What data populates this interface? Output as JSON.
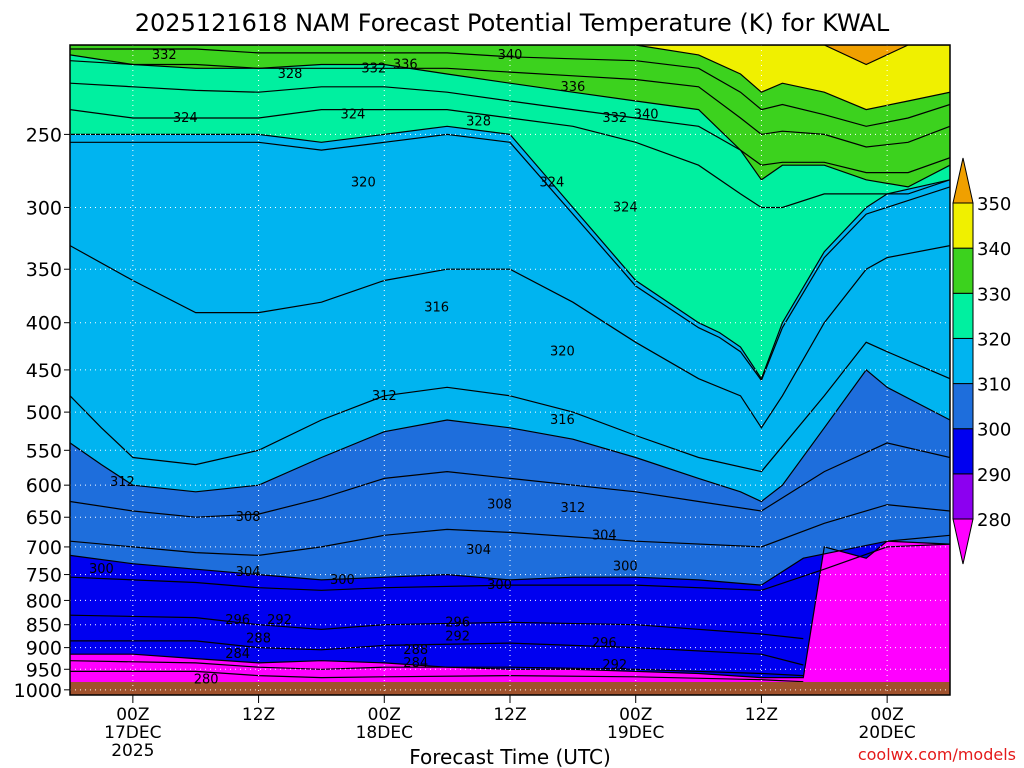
{
  "chart_data": {
    "type": "area",
    "title": "2025121618 NAM Forecast Potential Temperature (K) for KWAL",
    "xlabel": "Forecast Time (UTC)",
    "ylabel": "",
    "watermark": "coolwx.com/models",
    "x_ticks": [
      {
        "hour": 6,
        "label": "00Z",
        "date": "17DEC",
        "year": "2025"
      },
      {
        "hour": 18,
        "label": "12Z",
        "date": "",
        "year": ""
      },
      {
        "hour": 30,
        "label": "00Z",
        "date": "18DEC",
        "year": ""
      },
      {
        "hour": 42,
        "label": "12Z",
        "date": "",
        "year": ""
      },
      {
        "hour": 54,
        "label": "00Z",
        "date": "19DEC",
        "year": ""
      },
      {
        "hour": 66,
        "label": "12Z",
        "date": "",
        "year": ""
      },
      {
        "hour": 78,
        "label": "00Z",
        "date": "20DEC",
        "year": ""
      }
    ],
    "xlim_hours": [
      0,
      84
    ],
    "y_ticks": [
      250,
      300,
      350,
      400,
      450,
      500,
      550,
      600,
      650,
      700,
      750,
      800,
      850,
      900,
      950,
      1000
    ],
    "ylim": [
      1000,
      200
    ],
    "colorbar": {
      "levels": [
        280,
        290,
        300,
        310,
        320,
        330,
        340,
        350
      ],
      "colors": [
        "#ff00ff",
        "#8c00f0",
        "#0000f0",
        "#1e6edc",
        "#00b4f0",
        "#00f0a0",
        "#3cd21e",
        "#f0f000",
        "#f0a000"
      ]
    },
    "series": [
      {
        "level": 290,
        "color": "#8c00f0",
        "x": [
          0,
          6,
          12,
          18,
          24,
          30,
          36,
          42,
          48,
          54,
          60,
          66,
          70,
          72,
          76,
          78,
          84
        ],
        "y": [
          915,
          915,
          925,
          935,
          930,
          935,
          945,
          950,
          950,
          955,
          960,
          970,
          970,
          700,
          720,
          690,
          680
        ]
      },
      {
        "level": 300,
        "color": "#0000f0",
        "x": [
          0,
          6,
          12,
          18,
          24,
          30,
          36,
          42,
          48,
          54,
          60,
          66,
          70,
          78,
          84
        ],
        "y": [
          715,
          730,
          740,
          750,
          760,
          755,
          750,
          760,
          755,
          755,
          760,
          770,
          720,
          690,
          695
        ]
      },
      {
        "level": 310,
        "color": "#1e6edc",
        "x": [
          0,
          3,
          6,
          12,
          18,
          24,
          30,
          36,
          42,
          48,
          54,
          60,
          64,
          66,
          68,
          72,
          76,
          78,
          84
        ],
        "y": [
          540,
          570,
          600,
          610,
          600,
          560,
          525,
          510,
          520,
          535,
          560,
          590,
          610,
          625,
          600,
          520,
          450,
          470,
          510
        ]
      },
      {
        "level": 320,
        "color": "#00b4f0",
        "x": [
          0,
          6,
          12,
          18,
          24,
          30,
          36,
          42,
          48,
          54,
          60,
          62,
          64,
          66,
          68,
          72,
          76,
          78,
          84
        ],
        "y": [
          250,
          250,
          250,
          250,
          255,
          250,
          245,
          250,
          300,
          360,
          400,
          410,
          425,
          460,
          400,
          335,
          300,
          290,
          280
        ]
      },
      {
        "level": 330,
        "color": "#00f0a0",
        "x": [
          0,
          6,
          12,
          18,
          24,
          30,
          36,
          42,
          48,
          54,
          60,
          64,
          66,
          68,
          72,
          76,
          80,
          84
        ],
        "y": [
          205,
          210,
          212,
          212,
          210,
          210,
          215,
          220,
          225,
          230,
          235,
          260,
          280,
          270,
          270,
          280,
          285,
          270
        ]
      },
      {
        "level": 340,
        "color": "#3cd21e",
        "x": [
          0,
          6,
          12,
          18,
          24,
          30,
          36,
          42,
          48,
          54,
          60,
          64,
          66,
          68,
          72,
          76,
          80,
          84
        ],
        "y": [
          200,
          200,
          200,
          200,
          200,
          200,
          200,
          200,
          200,
          200,
          205,
          215,
          225,
          220,
          225,
          235,
          230,
          225
        ]
      },
      {
        "level": 350,
        "color": "#f0f000",
        "x": [
          66,
          72,
          76,
          80,
          84
        ],
        "y": [
          200,
          200,
          210,
          200,
          200
        ]
      }
    ],
    "contour_lines": [
      {
        "level": 280,
        "x": [
          0,
          12,
          18,
          24,
          30,
          42,
          54,
          66,
          70
        ],
        "y": [
          985,
          985,
          990,
          990,
          988,
          985,
          985,
          990,
          990
        ]
      },
      {
        "level": 284,
        "x": [
          0,
          12,
          18,
          24,
          30,
          42,
          54,
          66,
          70
        ],
        "y": [
          955,
          955,
          965,
          970,
          968,
          965,
          968,
          975,
          980
        ]
      },
      {
        "level": 288,
        "x": [
          0,
          12,
          18,
          24,
          30,
          42,
          54,
          66,
          70
        ],
        "y": [
          930,
          935,
          945,
          950,
          945,
          945,
          950,
          960,
          965
        ]
      },
      {
        "level": 292,
        "x": [
          0,
          12,
          18,
          24,
          30,
          42,
          54,
          66,
          70
        ],
        "y": [
          885,
          885,
          900,
          905,
          895,
          890,
          900,
          915,
          940
        ]
      },
      {
        "level": 296,
        "x": [
          0,
          12,
          18,
          24,
          30,
          42,
          54,
          66,
          70
        ],
        "y": [
          830,
          835,
          850,
          860,
          850,
          845,
          850,
          870,
          880
        ]
      },
      {
        "level": 300,
        "x": [
          0,
          12,
          18,
          24,
          30,
          42,
          54,
          66,
          72,
          78,
          84
        ],
        "y": [
          755,
          765,
          775,
          780,
          775,
          770,
          770,
          780,
          740,
          700,
          695
        ]
      },
      {
        "level": 304,
        "x": [
          0,
          6,
          12,
          18,
          24,
          30,
          36,
          42,
          54,
          66,
          72,
          78,
          84
        ],
        "y": [
          690,
          700,
          710,
          715,
          700,
          680,
          670,
          675,
          690,
          700,
          660,
          630,
          640
        ]
      },
      {
        "level": 308,
        "x": [
          0,
          6,
          12,
          18,
          24,
          30,
          36,
          42,
          54,
          60,
          66,
          72,
          78,
          84
        ],
        "y": [
          625,
          640,
          650,
          645,
          620,
          590,
          580,
          590,
          610,
          625,
          640,
          580,
          540,
          560
        ]
      },
      {
        "level": 312,
        "x": [
          0,
          3,
          6,
          12,
          18,
          24,
          30,
          36,
          42,
          48,
          54,
          60,
          66,
          72,
          76,
          78,
          84
        ],
        "y": [
          480,
          520,
          560,
          570,
          550,
          510,
          480,
          470,
          480,
          500,
          530,
          560,
          580,
          480,
          420,
          430,
          460
        ]
      },
      {
        "level": 316,
        "x": [
          0,
          6,
          12,
          18,
          24,
          30,
          36,
          42,
          48,
          54,
          60,
          64,
          66,
          68,
          72,
          76,
          78,
          84
        ],
        "y": [
          330,
          360,
          390,
          390,
          380,
          360,
          350,
          350,
          380,
          420,
          460,
          480,
          520,
          480,
          400,
          350,
          340,
          330
        ]
      },
      {
        "level": 320,
        "x": [
          0,
          6,
          12,
          18,
          24,
          30,
          36,
          42,
          48,
          54,
          60,
          62,
          64,
          66,
          68,
          72,
          76,
          84
        ],
        "y": [
          255,
          255,
          255,
          255,
          260,
          255,
          250,
          255,
          305,
          365,
          405,
          415,
          430,
          462,
          405,
          340,
          305,
          285
        ]
      },
      {
        "level": 324,
        "x": [
          0,
          6,
          12,
          18,
          24,
          30,
          36,
          42,
          48,
          54,
          60,
          64,
          66,
          68,
          72,
          76,
          80,
          84
        ],
        "y": [
          235,
          240,
          240,
          240,
          235,
          235,
          235,
          240,
          245,
          255,
          270,
          290,
          300,
          300,
          290,
          290,
          290,
          280
        ]
      },
      {
        "level": 328,
        "x": [
          0,
          6,
          12,
          18,
          24,
          30,
          36,
          42,
          48,
          54,
          60,
          64,
          66,
          68,
          72,
          76,
          80,
          84
        ],
        "y": [
          220,
          222,
          224,
          225,
          222,
          222,
          225,
          230,
          235,
          240,
          245,
          260,
          270,
          268,
          268,
          275,
          275,
          265
        ]
      },
      {
        "level": 332,
        "x": [
          0,
          6,
          12,
          18,
          24,
          30,
          36,
          42,
          48,
          54,
          60,
          64,
          66,
          68,
          72,
          76,
          80,
          84
        ],
        "y": [
          208,
          210,
          210,
          212,
          212,
          212,
          212,
          214,
          216,
          218,
          222,
          240,
          250,
          248,
          250,
          258,
          255,
          245
        ]
      },
      {
        "level": 336,
        "x": [
          0,
          6,
          12,
          18,
          24,
          30,
          36,
          42,
          48,
          54,
          60,
          64,
          66,
          68,
          72,
          76,
          80,
          84
        ],
        "y": [
          202,
          202,
          202,
          204,
          204,
          204,
          204,
          206,
          207,
          208,
          212,
          225,
          235,
          232,
          238,
          245,
          240,
          232
        ]
      }
    ],
    "labels": [
      {
        "text": "332",
        "x": 9,
        "y": 205
      },
      {
        "text": "328",
        "x": 21,
        "y": 215
      },
      {
        "text": "332",
        "x": 29,
        "y": 212
      },
      {
        "text": "336",
        "x": 32,
        "y": 210
      },
      {
        "text": "340",
        "x": 42,
        "y": 205
      },
      {
        "text": "324",
        "x": 11,
        "y": 240
      },
      {
        "text": "324",
        "x": 27,
        "y": 238
      },
      {
        "text": "328",
        "x": 39,
        "y": 242
      },
      {
        "text": "336",
        "x": 48,
        "y": 222
      },
      {
        "text": "332",
        "x": 52,
        "y": 240
      },
      {
        "text": "340",
        "x": 55,
        "y": 238
      },
      {
        "text": "320",
        "x": 28,
        "y": 282
      },
      {
        "text": "324",
        "x": 46,
        "y": 282
      },
      {
        "text": "324",
        "x": 53,
        "y": 300
      },
      {
        "text": "316",
        "x": 35,
        "y": 385
      },
      {
        "text": "320",
        "x": 47,
        "y": 430
      },
      {
        "text": "312",
        "x": 30,
        "y": 480
      },
      {
        "text": "316",
        "x": 47,
        "y": 510
      },
      {
        "text": "312",
        "x": 5,
        "y": 595
      },
      {
        "text": "308",
        "x": 17,
        "y": 650
      },
      {
        "text": "308",
        "x": 41,
        "y": 630
      },
      {
        "text": "312",
        "x": 48,
        "y": 635
      },
      {
        "text": "304",
        "x": 39,
        "y": 705
      },
      {
        "text": "304",
        "x": 51,
        "y": 680
      },
      {
        "text": "300",
        "x": 3,
        "y": 740
      },
      {
        "text": "304",
        "x": 17,
        "y": 745
      },
      {
        "text": "300",
        "x": 26,
        "y": 760
      },
      {
        "text": "300",
        "x": 41,
        "y": 770
      },
      {
        "text": "300",
        "x": 53,
        "y": 735
      },
      {
        "text": "296",
        "x": 16,
        "y": 840
      },
      {
        "text": "292",
        "x": 20,
        "y": 840
      },
      {
        "text": "296",
        "x": 37,
        "y": 845
      },
      {
        "text": "292",
        "x": 37,
        "y": 875
      },
      {
        "text": "296",
        "x": 51,
        "y": 890
      },
      {
        "text": "288",
        "x": 18,
        "y": 880
      },
      {
        "text": "288",
        "x": 33,
        "y": 905
      },
      {
        "text": "284",
        "x": 16,
        "y": 915
      },
      {
        "text": "284",
        "x": 33,
        "y": 935
      },
      {
        "text": "292",
        "x": 52,
        "y": 940
      },
      {
        "text": "280",
        "x": 13,
        "y": 975
      }
    ]
  }
}
